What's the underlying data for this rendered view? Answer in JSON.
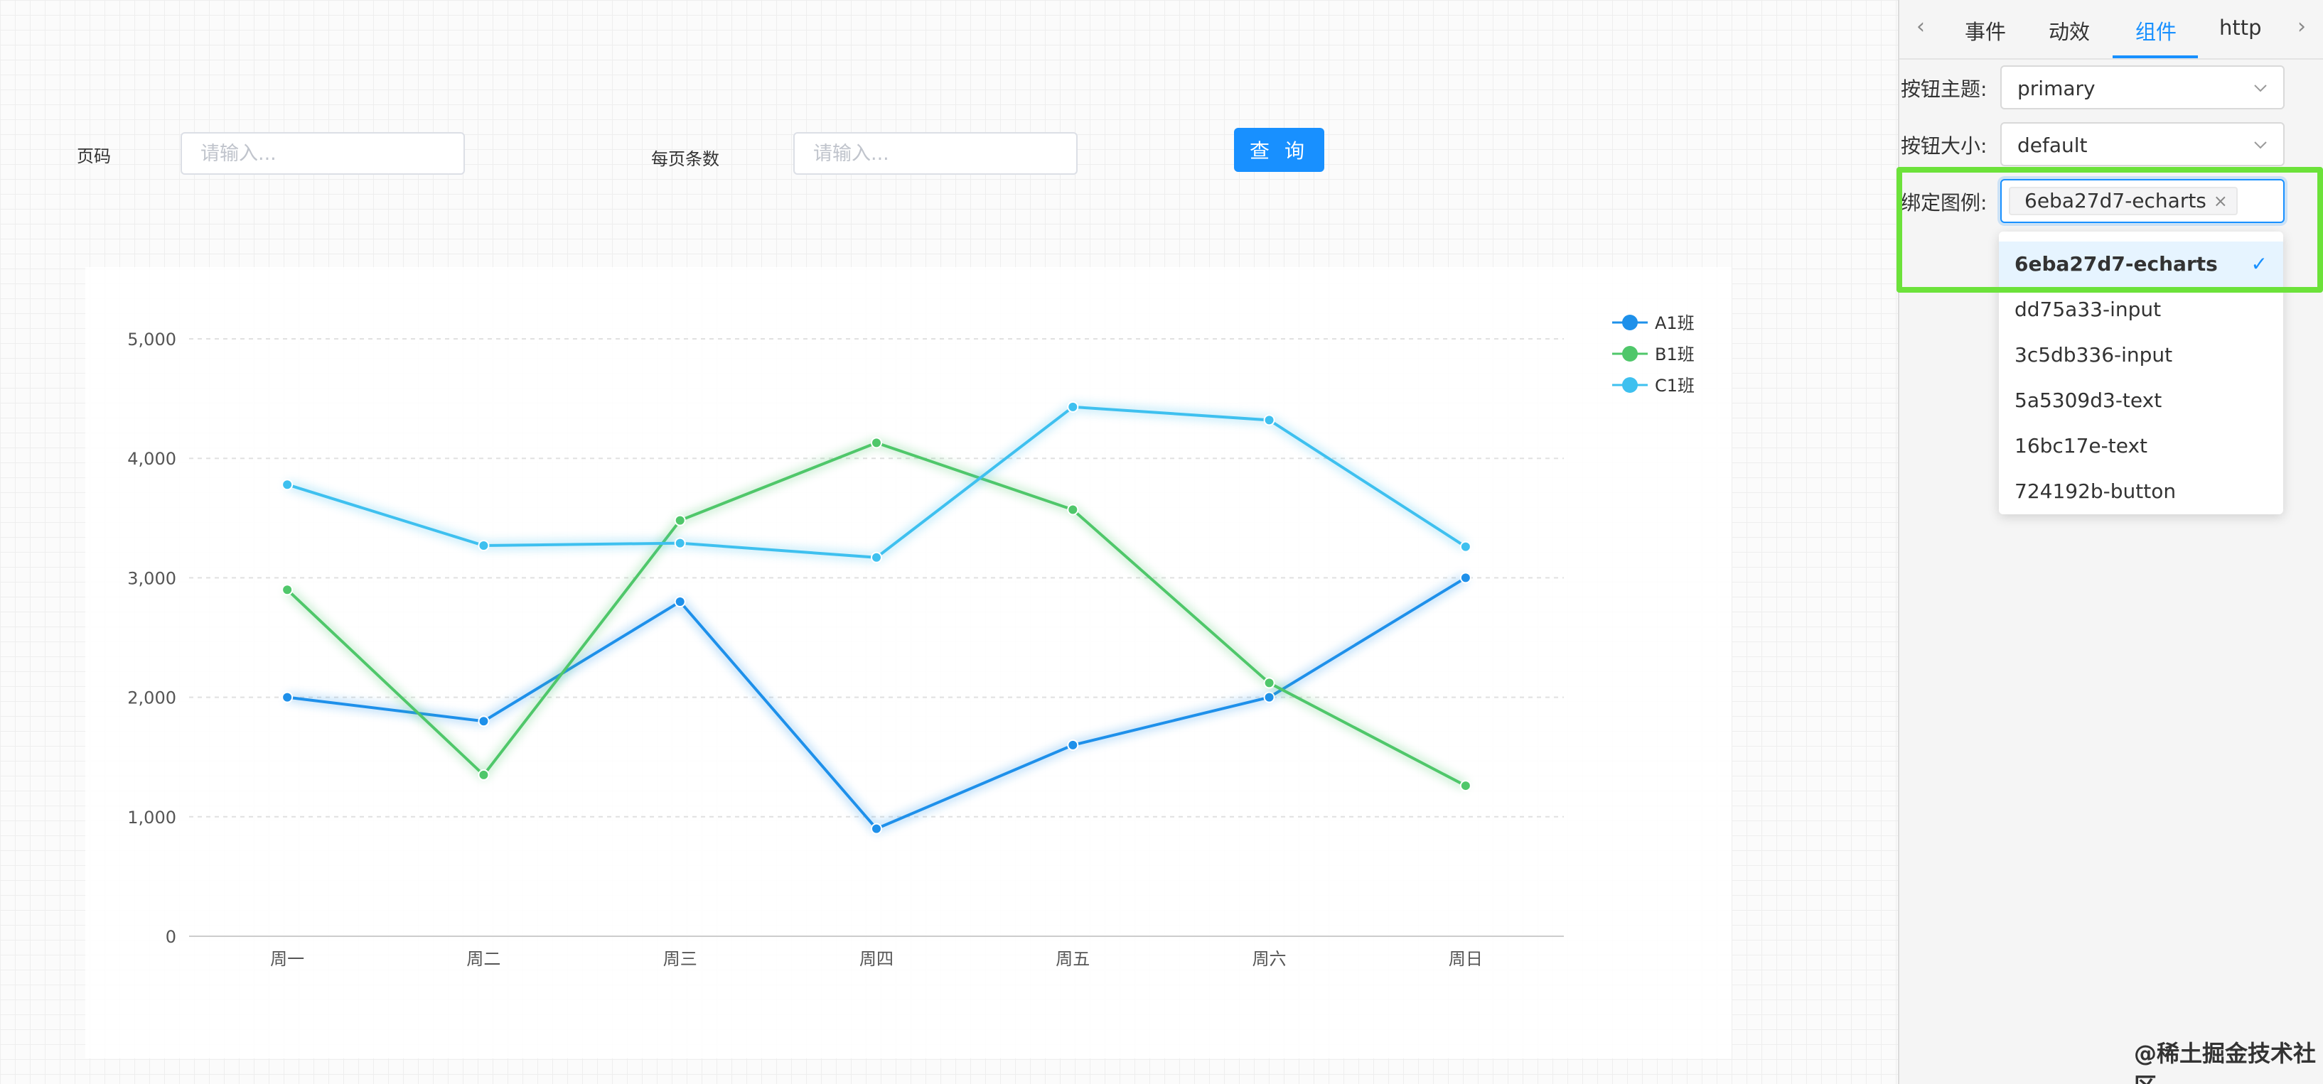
{
  "form": {
    "page_label": "页码",
    "page_placeholder": "请输入...",
    "size_label": "每页条数",
    "size_placeholder": "请输入...",
    "query_button": "查 询"
  },
  "chart_data": {
    "type": "line",
    "categories": [
      "周一",
      "周二",
      "周三",
      "周四",
      "周五",
      "周六",
      "周日"
    ],
    "ylim": [
      0,
      5000
    ],
    "yticks": [
      "0",
      "1,000",
      "2,000",
      "3,000",
      "4,000",
      "5,000"
    ],
    "grid": true,
    "legend_position": "top-right",
    "series": [
      {
        "name": "A1班",
        "color": "#1e90ea",
        "values": [
          2000,
          1800,
          2800,
          900,
          1600,
          2000,
          3000
        ]
      },
      {
        "name": "B1班",
        "color": "#4fc76a",
        "values": [
          2900,
          1350,
          3480,
          4130,
          3570,
          2120,
          1260
        ]
      },
      {
        "name": "C1班",
        "color": "#3ec0ef",
        "values": [
          3780,
          3270,
          3290,
          3170,
          4430,
          4320,
          3260
        ]
      }
    ]
  },
  "panel": {
    "tabs": [
      "事件",
      "动效",
      "组件",
      "http"
    ],
    "active_tab": "组件",
    "prev_icon": "chevron-left-icon",
    "next_icon": "chevron-right-icon",
    "theme_label": "按钮主题:",
    "theme_value": "primary",
    "size_label": "按钮大小:",
    "size_value": "default",
    "legend_label": "绑定图例:",
    "legend_tag": "6eba27d7-echarts",
    "options": [
      "6eba27d7-echarts",
      "dd75a33-input",
      "3c5db336-input",
      "5a5309d3-text",
      "16bc17e-text",
      "724192b-button"
    ],
    "selected_option": "6eba27d7-echarts",
    "highlight_color": "#6ce23a"
  },
  "watermark": "@稀土掘金技术社区"
}
